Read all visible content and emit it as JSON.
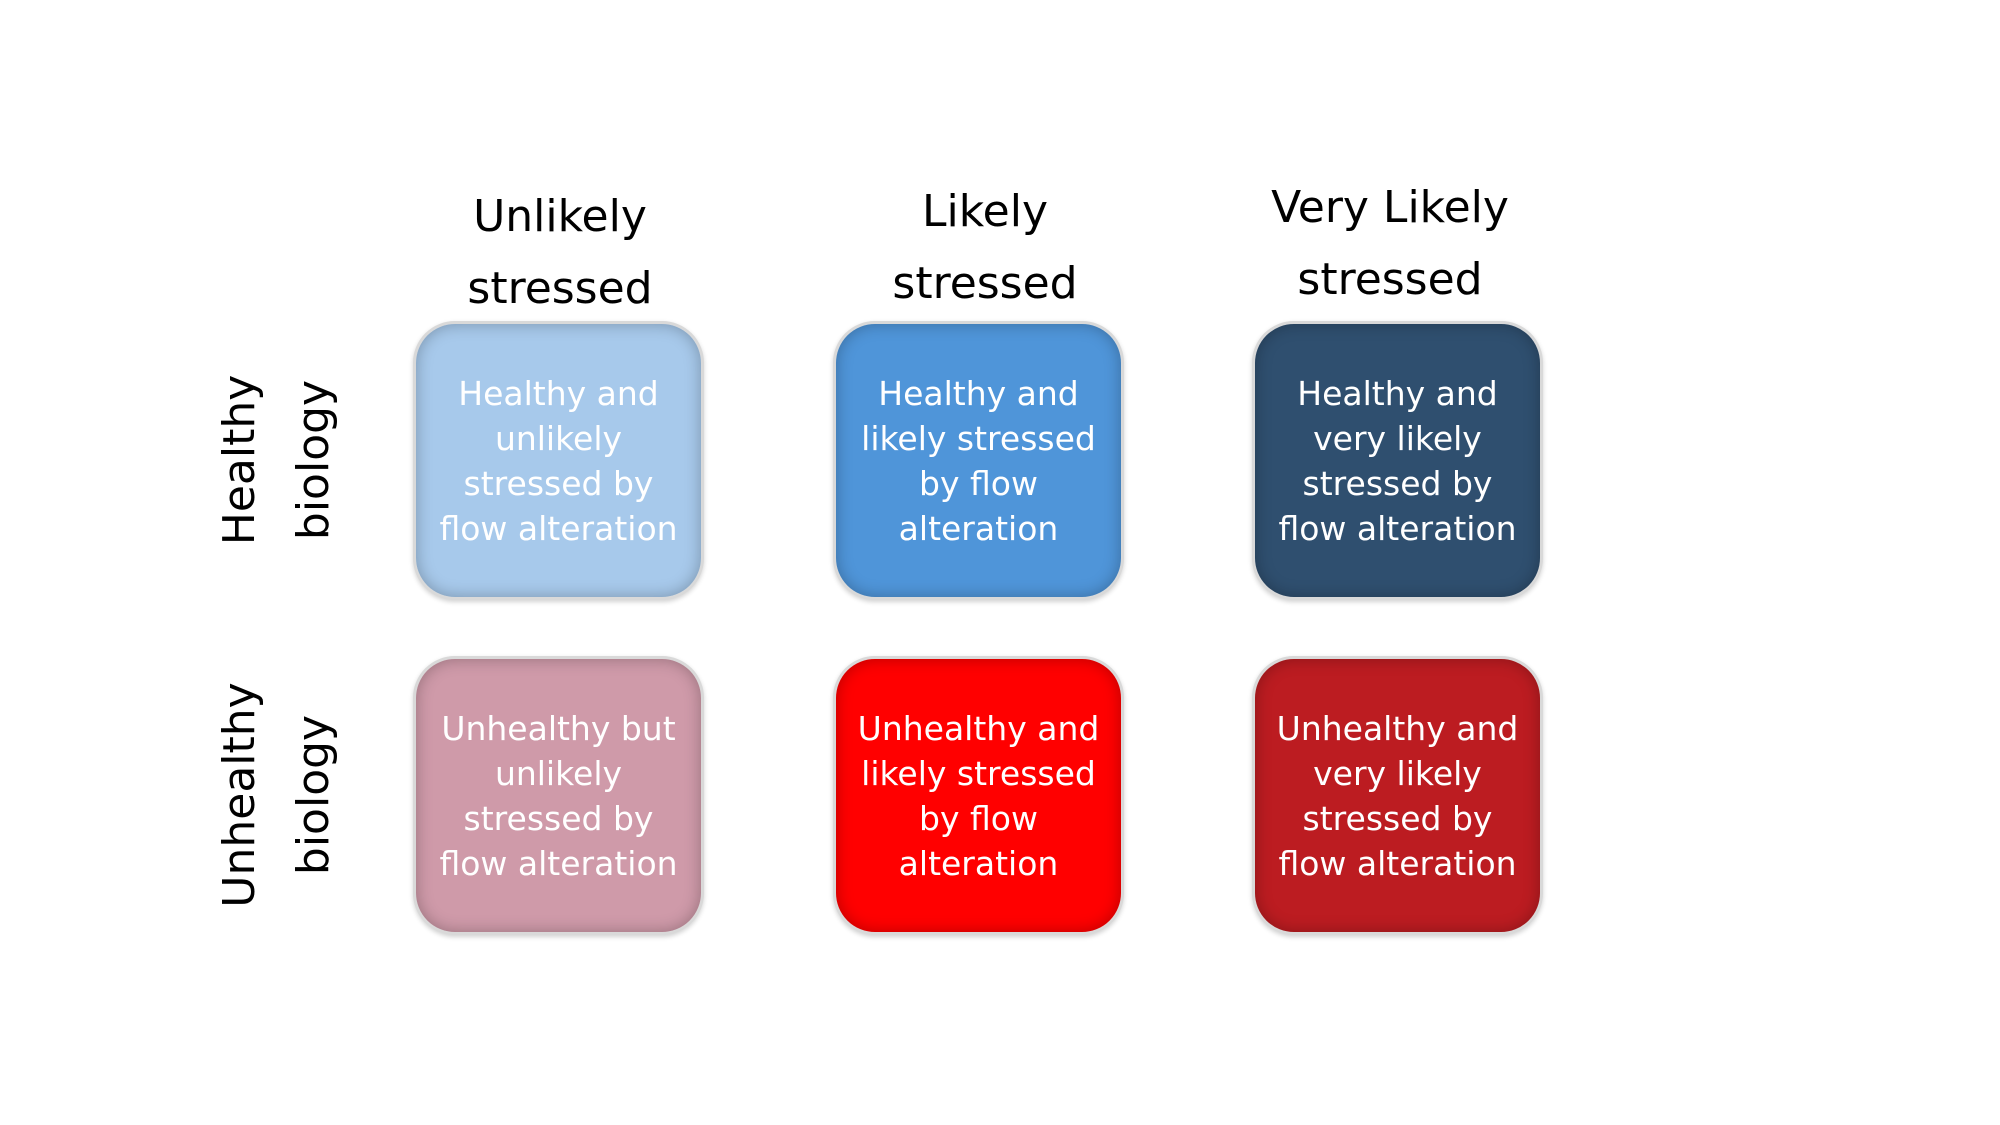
{
  "column_headers": [
    {
      "line1": "Unlikely",
      "line2": "stressed"
    },
    {
      "line1": "Likely",
      "line2": "stressed"
    },
    {
      "line1": "Very Likely",
      "line2": "stressed"
    }
  ],
  "row_labels": [
    {
      "line1": "Healthy",
      "line2": "biology"
    },
    {
      "line1": "Unhealthy",
      "line2": "biology"
    }
  ],
  "cells": [
    [
      {
        "text": "Healthy and unlikely stressed by flow alteration",
        "color": "#a7c9eb"
      },
      {
        "text": "Healthy and likely stressed by flow alteration",
        "color": "#4f95d9"
      },
      {
        "text": "Healthy and very likely stressed by flow alteration",
        "color": "#2f4f6f"
      }
    ],
    [
      {
        "text": "Unhealthy but unlikely stressed by flow alteration",
        "color": "#cf9aa9"
      },
      {
        "text": "Unhealthy and likely stressed by flow alteration",
        "color": "#ff0000"
      },
      {
        "text": "Unhealthy and very likely stressed by flow alteration",
        "color": "#bc1c21"
      }
    ]
  ]
}
